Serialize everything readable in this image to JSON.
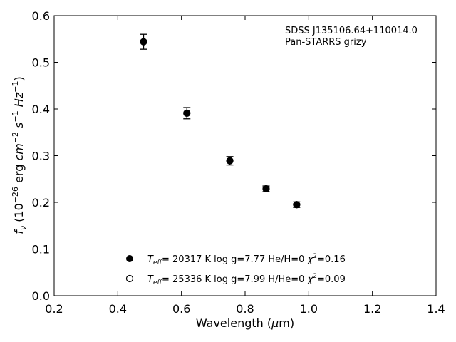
{
  "chart_data": {
    "type": "scatter",
    "title": "",
    "annotations": [
      "SDSS J135106.64+110014.0",
      "Pan-STARRS grizy"
    ],
    "annotation_position": "top-right",
    "xlabel": {
      "text": "Wavelength (",
      "mu": "μ",
      "tail": "m)"
    },
    "ylabel": {
      "f": "f",
      "nu": "ν",
      "open": " (10",
      "exp1": "−26",
      "mid": " erg ",
      "cm": "cm",
      "exp2": "−2",
      "s": "s",
      "exp3": "−1",
      "hz": "Hz",
      "exp4": "−1",
      "close": ")"
    },
    "xlim": [
      0.2,
      1.4
    ],
    "ylim": [
      0.0,
      0.6
    ],
    "xticks": [
      0.2,
      0.4,
      0.6,
      0.8,
      1.0,
      1.2,
      1.4
    ],
    "xtick_labels": [
      "0.2",
      "0.4",
      "0.6",
      "0.8",
      "1.0",
      "1.2",
      "1.4"
    ],
    "yticks": [
      0.0,
      0.1,
      0.2,
      0.3,
      0.4,
      0.5,
      0.6
    ],
    "ytick_labels": [
      "0.0",
      "0.1",
      "0.2",
      "0.3",
      "0.4",
      "0.5",
      "0.6"
    ],
    "grid": false,
    "legend_position": "bottom-center",
    "series": [
      {
        "marker": "filled-circle",
        "x": [
          0.481,
          0.617,
          0.752,
          0.866,
          0.962
        ],
        "y": [
          0.544,
          0.391,
          0.289,
          0.229,
          0.195
        ],
        "yerr": [
          0.016,
          0.012,
          0.009,
          0.006,
          0.006
        ]
      },
      {
        "marker": "open-circle",
        "x": [
          0.481,
          0.617,
          0.752,
          0.866,
          0.962
        ],
        "y": [
          0.544,
          0.391,
          0.289,
          0.229,
          0.195
        ],
        "yerr": [
          0,
          0,
          0,
          0,
          0
        ]
      }
    ],
    "legend": [
      {
        "marker": "filled-circle",
        "T": "T",
        "eff": "eff",
        "a": "= 20317 K  log g=7.77  He/H=0  ",
        "chi": "χ",
        "sq": "2",
        "b": "=0.16"
      },
      {
        "marker": "open-circle",
        "T": "T",
        "eff": "eff",
        "a": "= 25336 K  log g=7.99  H/He=0  ",
        "chi": "χ",
        "sq": "2",
        "b": "=0.09"
      }
    ]
  }
}
